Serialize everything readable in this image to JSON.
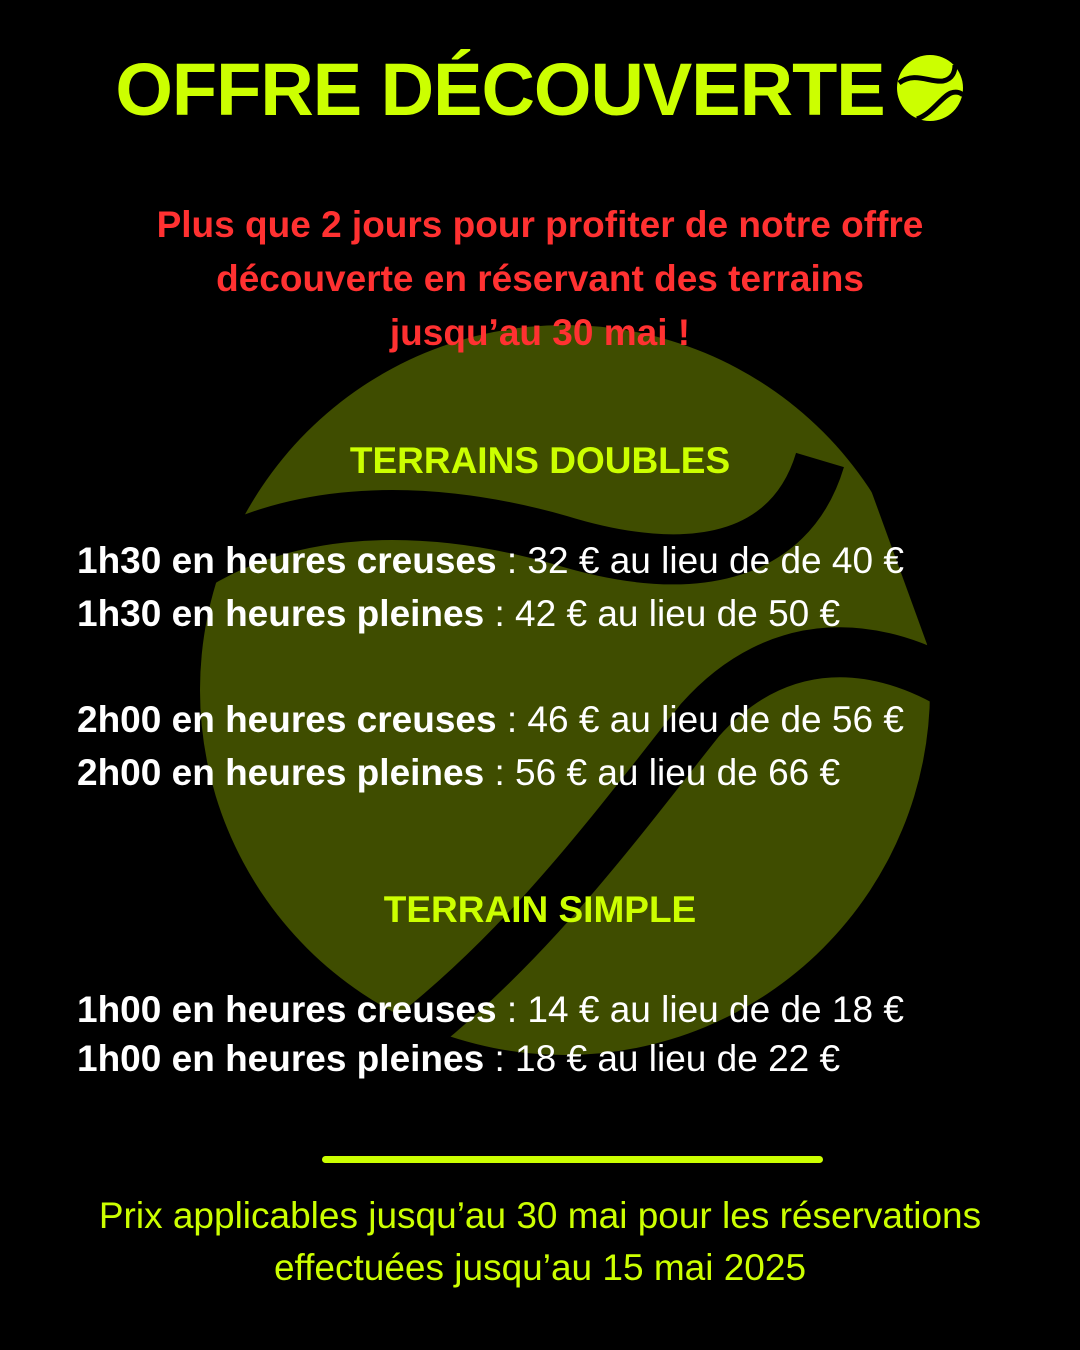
{
  "title": "OFFRE DÉCOUVERTE",
  "title_icon": "tennis-ball-icon",
  "colors": {
    "accent": "#ccff00",
    "alert": "#ff3131",
    "background": "#000000",
    "ball_watermark": "#3f4d00"
  },
  "intro": [
    "Plus que 2 jours pour profiter de notre offre",
    "découverte en réservant des terrains",
    "jusqu’au 30 mai !"
  ],
  "sections": [
    {
      "heading": "TERRAINS DOUBLES",
      "items": [
        {
          "label": "1h30 en heures creuses",
          "price": " : 32 € au lieu de de 40 €"
        },
        {
          "label": "1h30 en heures pleines",
          "price": " : 42 € au lieu de 50 €"
        },
        {
          "label": "2h00 en heures creuses",
          "price": " : 46 € au lieu de de 56 €"
        },
        {
          "label": "2h00 en heures pleines",
          "price": " : 56 € au lieu de 66 €"
        }
      ]
    },
    {
      "heading": "TERRAIN SIMPLE",
      "items": [
        {
          "label": "1h00 en heures creuses",
          "price": " : 14 € au lieu de de 18 €"
        },
        {
          "label": "1h00 en heures pleines",
          "price": " : 18 € au lieu de 22 €"
        }
      ]
    }
  ],
  "footer": [
    "Prix applicables jusqu’au 30 mai pour les réservations",
    "effectuées jusqu’au 15 mai 2025"
  ]
}
